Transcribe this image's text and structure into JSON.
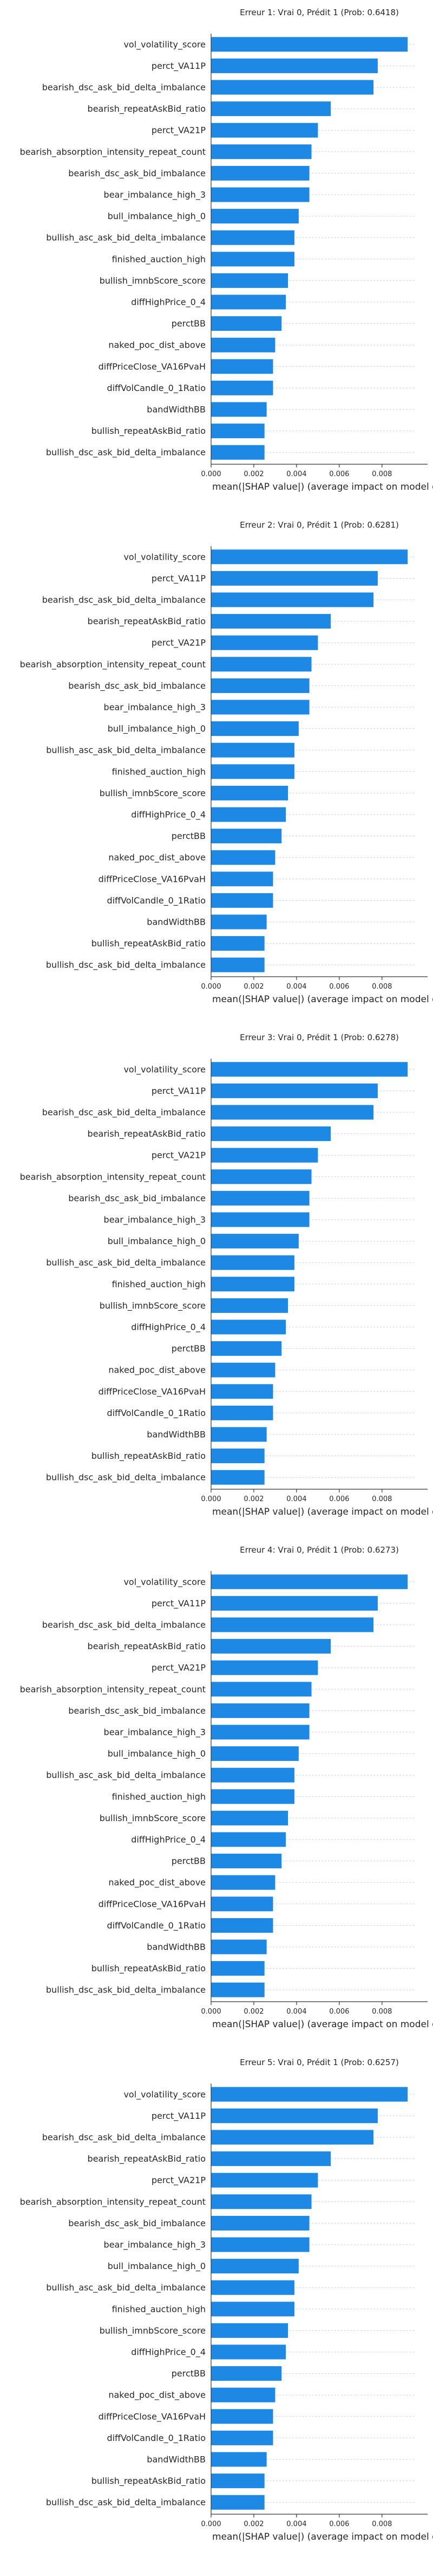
{
  "chart_data": [
    {
      "type": "bar",
      "orientation": "horizontal",
      "title": "Erreur 1: Vrai 0, Prédit 1 (Prob: 0.6418)",
      "xlabel": "mean(|SHAP value|) (average impact on model output m",
      "xlim": [
        0,
        0.0095
      ],
      "xticks": [
        "0.000",
        "0.002",
        "0.004",
        "0.006",
        "0.008"
      ],
      "categories": [
        "vol_volatility_score",
        "perct_VA11P",
        "bearish_dsc_ask_bid_delta_imbalance",
        "bearish_repeatAskBid_ratio",
        "perct_VA21P",
        "bearish_absorption_intensity_repeat_count",
        "bearish_dsc_ask_bid_imbalance",
        "bear_imbalance_high_3",
        "bull_imbalance_high_0",
        "bullish_asc_ask_bid_delta_imbalance",
        "finished_auction_high",
        "bullish_imnbScore_score",
        "diffHighPrice_0_4",
        "perctBB",
        "naked_poc_dist_above",
        "diffPriceClose_VA16PvaH",
        "diffVolCandle_0_1Ratio",
        "bandWidthBB",
        "bullish_repeatAskBid_ratio",
        "bullish_dsc_ask_bid_delta_imbalance"
      ],
      "values": [
        0.0092,
        0.0078,
        0.0076,
        0.0056,
        0.005,
        0.0047,
        0.0046,
        0.0046,
        0.0041,
        0.0039,
        0.0039,
        0.0036,
        0.0035,
        0.0033,
        0.003,
        0.0029,
        0.0029,
        0.0026,
        0.0025,
        0.0025
      ],
      "color": "#1e88e5"
    },
    {
      "type": "bar",
      "orientation": "horizontal",
      "title": "Erreur 2: Vrai 0, Prédit 1 (Prob: 0.6281)",
      "xlabel": "mean(|SHAP value|) (average impact on model output m",
      "xlim": [
        0,
        0.0095
      ],
      "xticks": [
        "0.000",
        "0.002",
        "0.004",
        "0.006",
        "0.008"
      ],
      "categories": [
        "vol_volatility_score",
        "perct_VA11P",
        "bearish_dsc_ask_bid_delta_imbalance",
        "bearish_repeatAskBid_ratio",
        "perct_VA21P",
        "bearish_absorption_intensity_repeat_count",
        "bearish_dsc_ask_bid_imbalance",
        "bear_imbalance_high_3",
        "bull_imbalance_high_0",
        "bullish_asc_ask_bid_delta_imbalance",
        "finished_auction_high",
        "bullish_imnbScore_score",
        "diffHighPrice_0_4",
        "perctBB",
        "naked_poc_dist_above",
        "diffPriceClose_VA16PvaH",
        "diffVolCandle_0_1Ratio",
        "bandWidthBB",
        "bullish_repeatAskBid_ratio",
        "bullish_dsc_ask_bid_delta_imbalance"
      ],
      "values": [
        0.0092,
        0.0078,
        0.0076,
        0.0056,
        0.005,
        0.0047,
        0.0046,
        0.0046,
        0.0041,
        0.0039,
        0.0039,
        0.0036,
        0.0035,
        0.0033,
        0.003,
        0.0029,
        0.0029,
        0.0026,
        0.0025,
        0.0025
      ],
      "color": "#1e88e5"
    },
    {
      "type": "bar",
      "orientation": "horizontal",
      "title": "Erreur 3: Vrai 0, Prédit 1 (Prob: 0.6278)",
      "xlabel": "mean(|SHAP value|) (average impact on model output m",
      "xlim": [
        0,
        0.0095
      ],
      "xticks": [
        "0.000",
        "0.002",
        "0.004",
        "0.006",
        "0.008"
      ],
      "categories": [
        "vol_volatility_score",
        "perct_VA11P",
        "bearish_dsc_ask_bid_delta_imbalance",
        "bearish_repeatAskBid_ratio",
        "perct_VA21P",
        "bearish_absorption_intensity_repeat_count",
        "bearish_dsc_ask_bid_imbalance",
        "bear_imbalance_high_3",
        "bull_imbalance_high_0",
        "bullish_asc_ask_bid_delta_imbalance",
        "finished_auction_high",
        "bullish_imnbScore_score",
        "diffHighPrice_0_4",
        "perctBB",
        "naked_poc_dist_above",
        "diffPriceClose_VA16PvaH",
        "diffVolCandle_0_1Ratio",
        "bandWidthBB",
        "bullish_repeatAskBid_ratio",
        "bullish_dsc_ask_bid_delta_imbalance"
      ],
      "values": [
        0.0092,
        0.0078,
        0.0076,
        0.0056,
        0.005,
        0.0047,
        0.0046,
        0.0046,
        0.0041,
        0.0039,
        0.0039,
        0.0036,
        0.0035,
        0.0033,
        0.003,
        0.0029,
        0.0029,
        0.0026,
        0.0025,
        0.0025
      ],
      "color": "#1e88e5"
    },
    {
      "type": "bar",
      "orientation": "horizontal",
      "title": "Erreur 4: Vrai 0, Prédit 1 (Prob: 0.6273)",
      "xlabel": "mean(|SHAP value|) (average impact on model output m",
      "xlim": [
        0,
        0.0095
      ],
      "xticks": [
        "0.000",
        "0.002",
        "0.004",
        "0.006",
        "0.008"
      ],
      "categories": [
        "vol_volatility_score",
        "perct_VA11P",
        "bearish_dsc_ask_bid_delta_imbalance",
        "bearish_repeatAskBid_ratio",
        "perct_VA21P",
        "bearish_absorption_intensity_repeat_count",
        "bearish_dsc_ask_bid_imbalance",
        "bear_imbalance_high_3",
        "bull_imbalance_high_0",
        "bullish_asc_ask_bid_delta_imbalance",
        "finished_auction_high",
        "bullish_imnbScore_score",
        "diffHighPrice_0_4",
        "perctBB",
        "naked_poc_dist_above",
        "diffPriceClose_VA16PvaH",
        "diffVolCandle_0_1Ratio",
        "bandWidthBB",
        "bullish_repeatAskBid_ratio",
        "bullish_dsc_ask_bid_delta_imbalance"
      ],
      "values": [
        0.0092,
        0.0078,
        0.0076,
        0.0056,
        0.005,
        0.0047,
        0.0046,
        0.0046,
        0.0041,
        0.0039,
        0.0039,
        0.0036,
        0.0035,
        0.0033,
        0.003,
        0.0029,
        0.0029,
        0.0026,
        0.0025,
        0.0025
      ],
      "color": "#1e88e5"
    },
    {
      "type": "bar",
      "orientation": "horizontal",
      "title": "Erreur 5: Vrai 0, Prédit 1 (Prob: 0.6257)",
      "xlabel": "mean(|SHAP value|) (average impact on model output m",
      "xlim": [
        0,
        0.0095
      ],
      "xticks": [
        "0.000",
        "0.002",
        "0.004",
        "0.006",
        "0.008"
      ],
      "categories": [
        "vol_volatility_score",
        "perct_VA11P",
        "bearish_dsc_ask_bid_delta_imbalance",
        "bearish_repeatAskBid_ratio",
        "perct_VA21P",
        "bearish_absorption_intensity_repeat_count",
        "bearish_dsc_ask_bid_imbalance",
        "bear_imbalance_high_3",
        "bull_imbalance_high_0",
        "bullish_asc_ask_bid_delta_imbalance",
        "finished_auction_high",
        "bullish_imnbScore_score",
        "diffHighPrice_0_4",
        "perctBB",
        "naked_poc_dist_above",
        "diffPriceClose_VA16PvaH",
        "diffVolCandle_0_1Ratio",
        "bandWidthBB",
        "bullish_repeatAskBid_ratio",
        "bullish_dsc_ask_bid_delta_imbalance"
      ],
      "values": [
        0.0092,
        0.0078,
        0.0076,
        0.0056,
        0.005,
        0.0047,
        0.0046,
        0.0046,
        0.0041,
        0.0039,
        0.0039,
        0.0036,
        0.0035,
        0.0033,
        0.003,
        0.0029,
        0.0029,
        0.0026,
        0.0025,
        0.0025
      ],
      "color": "#1e88e5"
    }
  ]
}
